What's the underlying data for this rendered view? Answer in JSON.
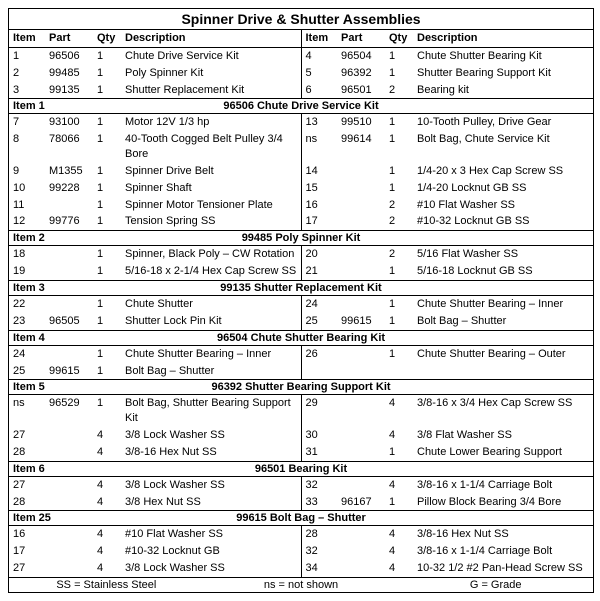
{
  "colors": {
    "rule": "#000000",
    "bg": "#ffffff",
    "text": "#000000"
  },
  "typography": {
    "family": "Arial",
    "body_pt": 11,
    "title_pt": 14
  },
  "title": "Spinner Drive & Shutter Assemblies",
  "column_headers": {
    "item": "Item",
    "part": "Part",
    "qty": "Qty",
    "desc": "Description"
  },
  "top_index": {
    "left": [
      {
        "item": "1",
        "part": "96506",
        "qty": "1",
        "desc": "Chute Drive Service Kit"
      },
      {
        "item": "2",
        "part": "99485",
        "qty": "1",
        "desc": "Poly Spinner Kit"
      },
      {
        "item": "3",
        "part": "99135",
        "qty": "1",
        "desc": "Shutter Replacement Kit"
      }
    ],
    "right": [
      {
        "item": "4",
        "part": "96504",
        "qty": "1",
        "desc": "Chute Shutter Bearing Kit"
      },
      {
        "item": "5",
        "part": "96392",
        "qty": "1",
        "desc": "Shutter Bearing Support Kit"
      },
      {
        "item": "6",
        "part": "96501",
        "qty": "2",
        "desc": "Bearing kit"
      }
    ]
  },
  "sections": [
    {
      "label": "Item 1",
      "title": "96506   Chute Drive Service Kit",
      "left": [
        {
          "item": "7",
          "part": "93100",
          "qty": "1",
          "desc": "Motor 12V 1/3 hp"
        },
        {
          "item": "8",
          "part": "78066",
          "qty": "1",
          "desc": "40-Tooth Cogged Belt Pulley 3/4 Bore"
        },
        {
          "item": "9",
          "part": "M1355",
          "qty": "1",
          "desc": "Spinner Drive Belt"
        },
        {
          "item": "10",
          "part": "99228",
          "qty": "1",
          "desc": "Spinner Shaft"
        },
        {
          "item": "11",
          "part": "",
          "qty": "1",
          "desc": "Spinner Motor Tensioner Plate"
        },
        {
          "item": "12",
          "part": "99776",
          "qty": "1",
          "desc": "Tension Spring SS"
        }
      ],
      "right": [
        {
          "item": "13",
          "part": "99510",
          "qty": "1",
          "desc": "10-Tooth Pulley, Drive Gear"
        },
        {
          "item": "ns",
          "part": "99614",
          "qty": "1",
          "desc": "Bolt Bag, Chute Service Kit"
        },
        {
          "item": "14",
          "part": "",
          "qty": "1",
          "desc": "1/4-20 x 3 Hex Cap Screw SS"
        },
        {
          "item": "15",
          "part": "",
          "qty": "1",
          "desc": "1/4-20 Locknut GB SS"
        },
        {
          "item": "16",
          "part": "",
          "qty": "2",
          "desc": "#10 Flat Washer SS"
        },
        {
          "item": "17",
          "part": "",
          "qty": "2",
          "desc": "#10-32 Locknut GB SS"
        }
      ]
    },
    {
      "label": "Item 2",
      "title": "99485   Poly Spinner Kit",
      "left": [
        {
          "item": "18",
          "part": "",
          "qty": "1",
          "desc": "Spinner, Black Poly – CW Rotation"
        },
        {
          "item": "19",
          "part": "",
          "qty": "1",
          "desc": "5/16-18 x 2-1/4 Hex Cap Screw SS"
        }
      ],
      "right": [
        {
          "item": "20",
          "part": "",
          "qty": "2",
          "desc": "5/16 Flat Washer SS"
        },
        {
          "item": "21",
          "part": "",
          "qty": "1",
          "desc": "5/16-18 Locknut GB SS"
        }
      ]
    },
    {
      "label": "Item 3",
      "title": "99135   Shutter Replacement Kit",
      "left": [
        {
          "item": "22",
          "part": "",
          "qty": "1",
          "desc": "Chute Shutter"
        },
        {
          "item": "23",
          "part": "96505",
          "qty": "1",
          "desc": "Shutter Lock Pin Kit"
        }
      ],
      "right": [
        {
          "item": "24",
          "part": "",
          "qty": "1",
          "desc": "Chute Shutter Bearing – Inner"
        },
        {
          "item": "25",
          "part": "99615",
          "qty": "1",
          "desc": "Bolt Bag – Shutter"
        }
      ]
    },
    {
      "label": "Item 4",
      "title": "96504   Chute Shutter Bearing Kit",
      "left": [
        {
          "item": "24",
          "part": "",
          "qty": "1",
          "desc": "Chute Shutter Bearing – Inner"
        },
        {
          "item": "25",
          "part": "99615",
          "qty": "1",
          "desc": "Bolt Bag – Shutter"
        }
      ],
      "right": [
        {
          "item": "26",
          "part": "",
          "qty": "1",
          "desc": "Chute Shutter Bearing – Outer"
        },
        {
          "item": "",
          "part": "",
          "qty": "",
          "desc": ""
        }
      ]
    },
    {
      "label": "Item 5",
      "title": "96392   Shutter Bearing Support Kit",
      "left": [
        {
          "item": "ns",
          "part": "96529",
          "qty": "1",
          "desc": "Bolt Bag, Shutter Bearing Support Kit"
        },
        {
          "item": "27",
          "part": "",
          "qty": "4",
          "desc": "3/8 Lock Washer SS"
        },
        {
          "item": "28",
          "part": "",
          "qty": "4",
          "desc": "3/8-16 Hex Nut SS"
        }
      ],
      "right": [
        {
          "item": "29",
          "part": "",
          "qty": "4",
          "desc": "3/8-16 x 3/4 Hex Cap Screw SS"
        },
        {
          "item": "30",
          "part": "",
          "qty": "4",
          "desc": "3/8 Flat Washer SS"
        },
        {
          "item": "31",
          "part": "",
          "qty": "1",
          "desc": "Chute Lower Bearing Support"
        }
      ]
    },
    {
      "label": "Item  6",
      "title": "96501   Bearing Kit",
      "left": [
        {
          "item": "27",
          "part": "",
          "qty": "4",
          "desc": "3/8 Lock Washer SS"
        },
        {
          "item": "28",
          "part": "",
          "qty": "4",
          "desc": "3/8 Hex Nut SS"
        }
      ],
      "right": [
        {
          "item": "32",
          "part": "",
          "qty": "4",
          "desc": "3/8-16 x 1-1/4 Carriage Bolt"
        },
        {
          "item": "33",
          "part": "96167",
          "qty": "1",
          "desc": "Pillow Block Bearing 3/4 Bore"
        }
      ]
    },
    {
      "label": "Item 25",
      "title": "99615   Bolt Bag – Shutter",
      "left": [
        {
          "item": "16",
          "part": "",
          "qty": "4",
          "desc": "#10 Flat Washer SS"
        },
        {
          "item": "17",
          "part": "",
          "qty": "4",
          "desc": "#10-32 Locknut GB"
        },
        {
          "item": "27",
          "part": "",
          "qty": "4",
          "desc": "3/8 Lock Washer SS"
        }
      ],
      "right": [
        {
          "item": "28",
          "part": "",
          "qty": "4",
          "desc": "3/8-16 Hex Nut SS"
        },
        {
          "item": "32",
          "part": "",
          "qty": "4",
          "desc": "3/8-16 x 1-1/4 Carriage Bolt"
        },
        {
          "item": "34",
          "part": "",
          "qty": "4",
          "desc": "10-32 1/2 #2 Pan-Head Screw SS"
        }
      ]
    }
  ],
  "footer": {
    "left": "SS = Stainless Steel",
    "mid": "ns = not shown",
    "right": "G = Grade"
  }
}
